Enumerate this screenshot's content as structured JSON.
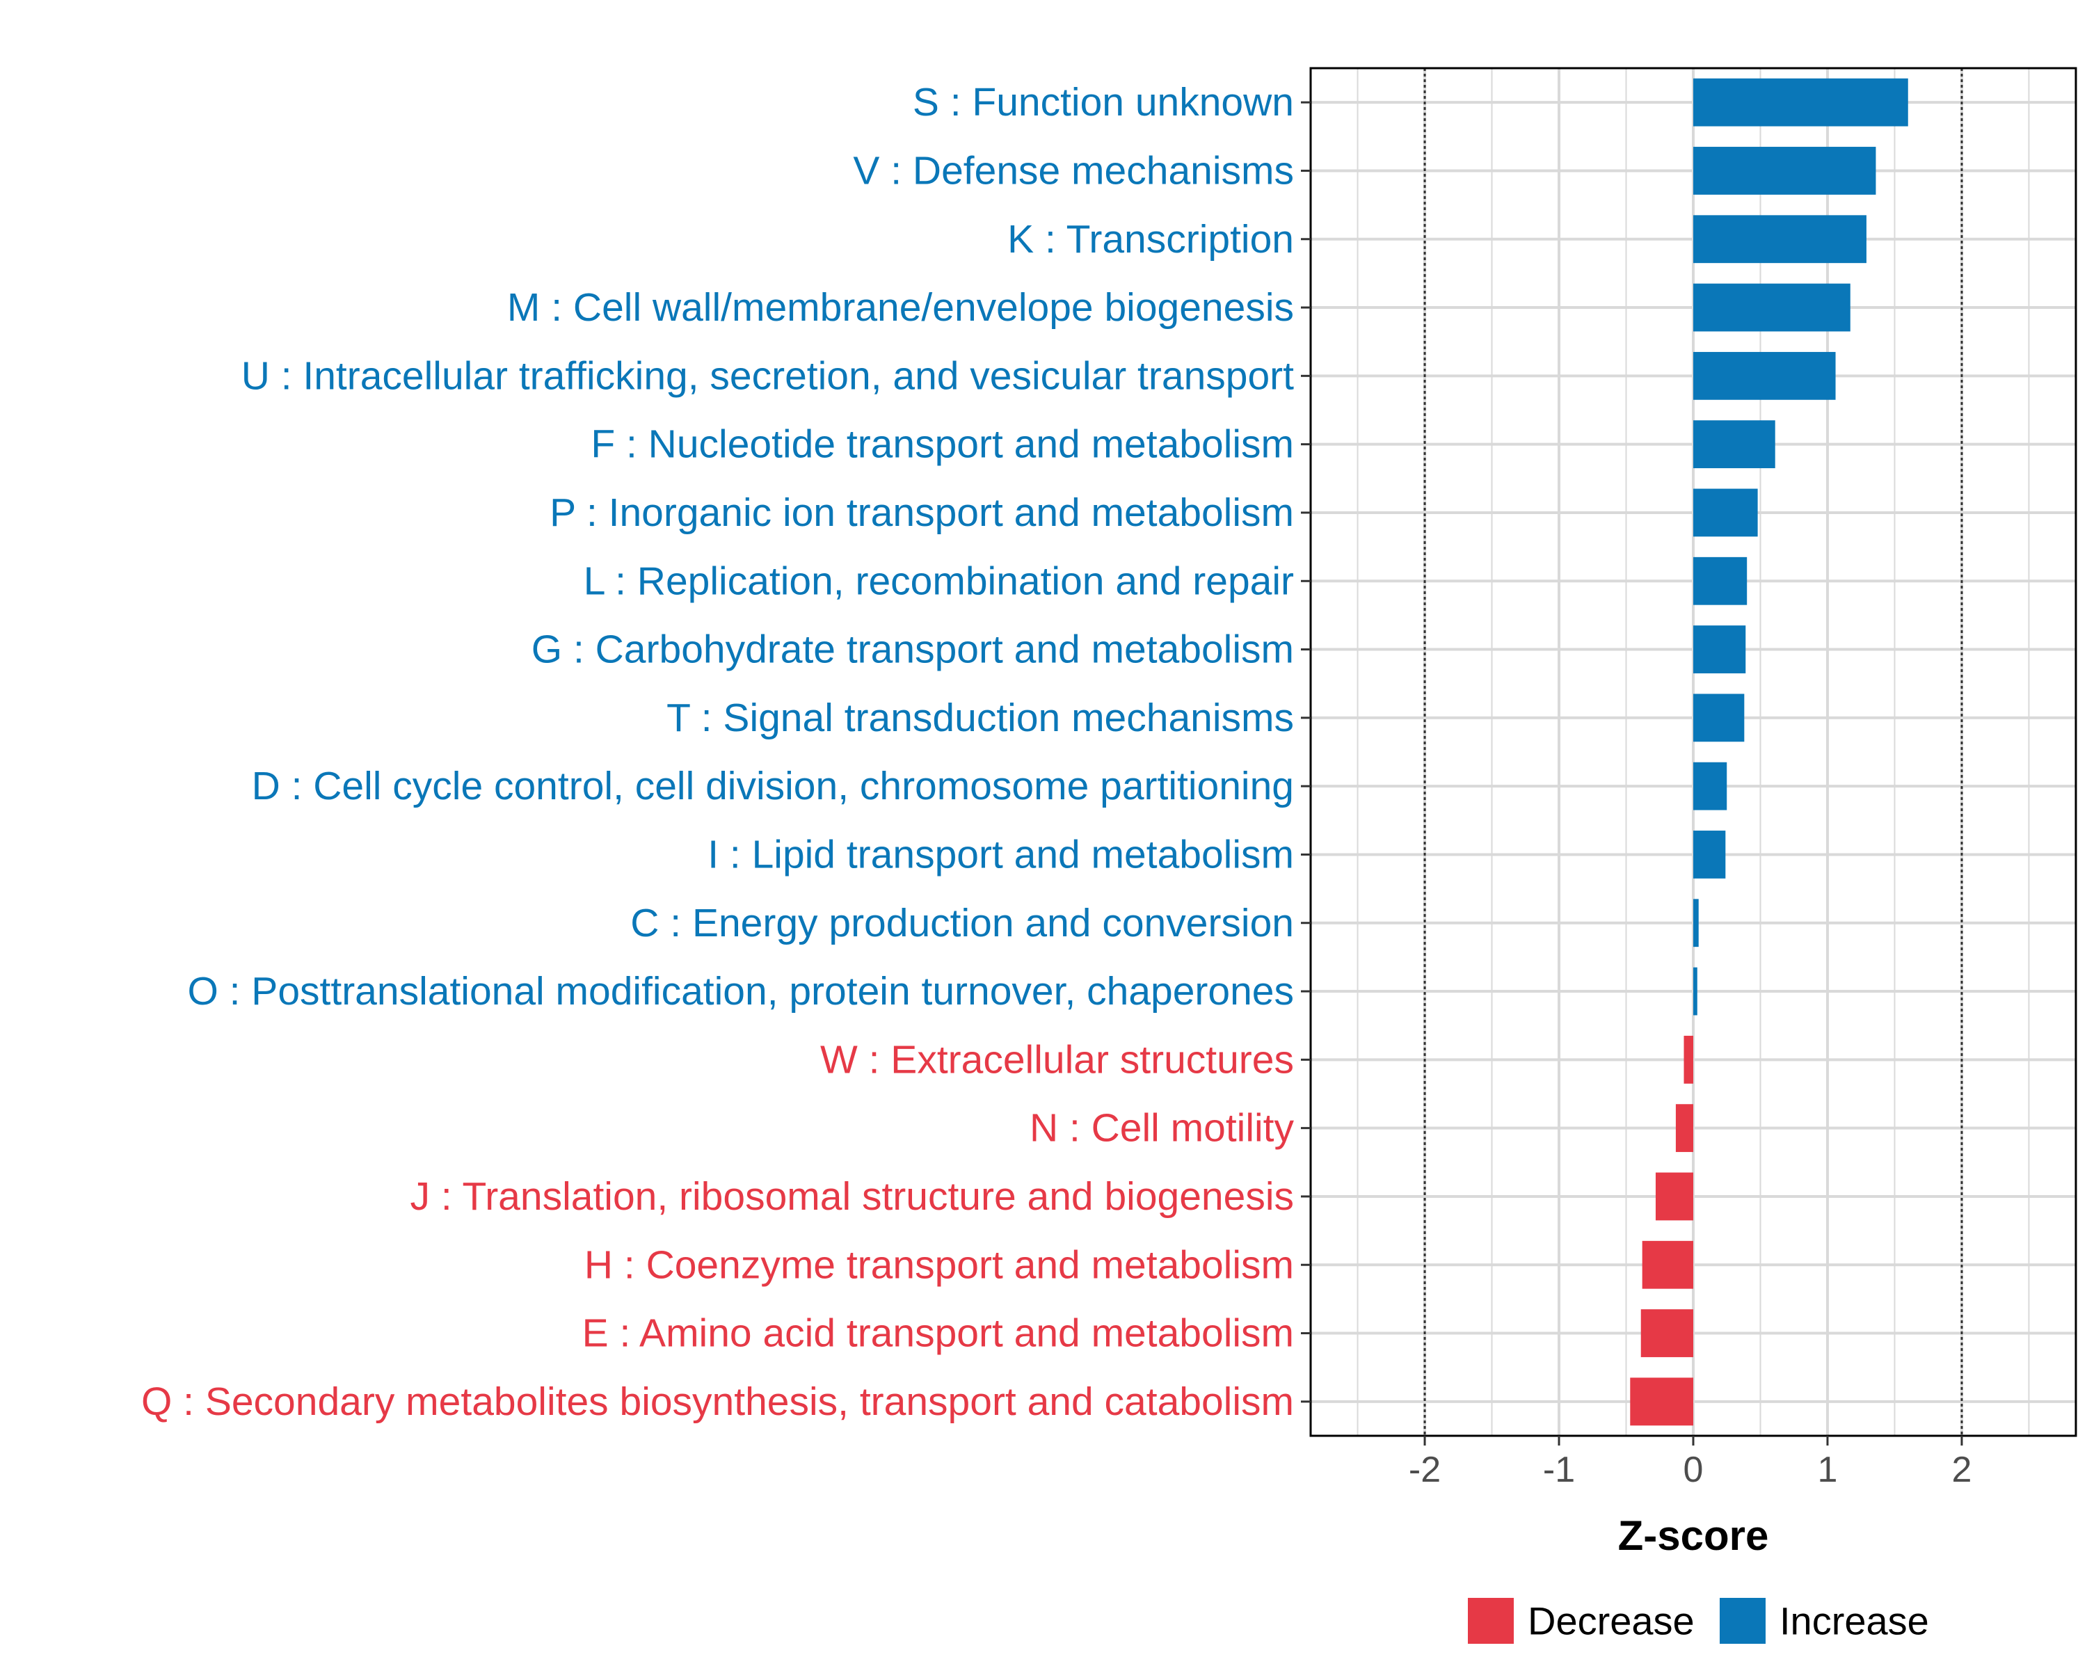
{
  "chart_data": {
    "type": "bar",
    "orientation": "horizontal",
    "title": "",
    "xlabel": "Z-score",
    "ylabel": "",
    "xlim": [
      -2.85,
      2.85
    ],
    "xticks": [
      -2,
      -1,
      0,
      1,
      2
    ],
    "xtick_labels": [
      "-2",
      "-1",
      "0",
      "1",
      "2"
    ],
    "reference_lines": [
      -2,
      2
    ],
    "grid": true,
    "legend_position": "bottom",
    "colors": {
      "Increase": "#0A77B8",
      "Decrease": "#E63946",
      "grid": "#D9D9D9",
      "axis_text": "#4D4D4D"
    },
    "legend": [
      {
        "label": "Decrease",
        "color": "#E63946"
      },
      {
        "label": "Increase",
        "color": "#0A77B8"
      }
    ],
    "bars": [
      {
        "label": "S : Function unknown",
        "value": 1.6,
        "direction": "Increase"
      },
      {
        "label": "V : Defense mechanisms",
        "value": 1.36,
        "direction": "Increase"
      },
      {
        "label": "K : Transcription",
        "value": 1.29,
        "direction": "Increase"
      },
      {
        "label": "M : Cell wall/membrane/envelope biogenesis",
        "value": 1.17,
        "direction": "Increase"
      },
      {
        "label": "U : Intracellular trafficking, secretion, and vesicular transport",
        "value": 1.06,
        "direction": "Increase"
      },
      {
        "label": "F : Nucleotide transport and metabolism",
        "value": 0.61,
        "direction": "Increase"
      },
      {
        "label": "P : Inorganic ion transport and metabolism",
        "value": 0.48,
        "direction": "Increase"
      },
      {
        "label": "L : Replication, recombination and repair",
        "value": 0.4,
        "direction": "Increase"
      },
      {
        "label": "G : Carbohydrate transport and metabolism",
        "value": 0.39,
        "direction": "Increase"
      },
      {
        "label": "T : Signal transduction mechanisms",
        "value": 0.38,
        "direction": "Increase"
      },
      {
        "label": "D : Cell cycle control, cell division, chromosome partitioning",
        "value": 0.25,
        "direction": "Increase"
      },
      {
        "label": "I : Lipid transport and metabolism",
        "value": 0.24,
        "direction": "Increase"
      },
      {
        "label": "C : Energy production and conversion",
        "value": 0.04,
        "direction": "Increase"
      },
      {
        "label": "O : Posttranslational modification, protein turnover, chaperones",
        "value": 0.03,
        "direction": "Increase"
      },
      {
        "label": "W : Extracellular structures",
        "value": -0.07,
        "direction": "Decrease"
      },
      {
        "label": "N : Cell motility",
        "value": -0.13,
        "direction": "Decrease"
      },
      {
        "label": "J : Translation, ribosomal structure and biogenesis",
        "value": -0.28,
        "direction": "Decrease"
      },
      {
        "label": "H : Coenzyme transport and metabolism",
        "value": -0.38,
        "direction": "Decrease"
      },
      {
        "label": "E : Amino acid transport and metabolism",
        "value": -0.39,
        "direction": "Decrease"
      },
      {
        "label": "Q : Secondary metabolites biosynthesis, transport and catabolism",
        "value": -0.47,
        "direction": "Decrease"
      }
    ]
  }
}
